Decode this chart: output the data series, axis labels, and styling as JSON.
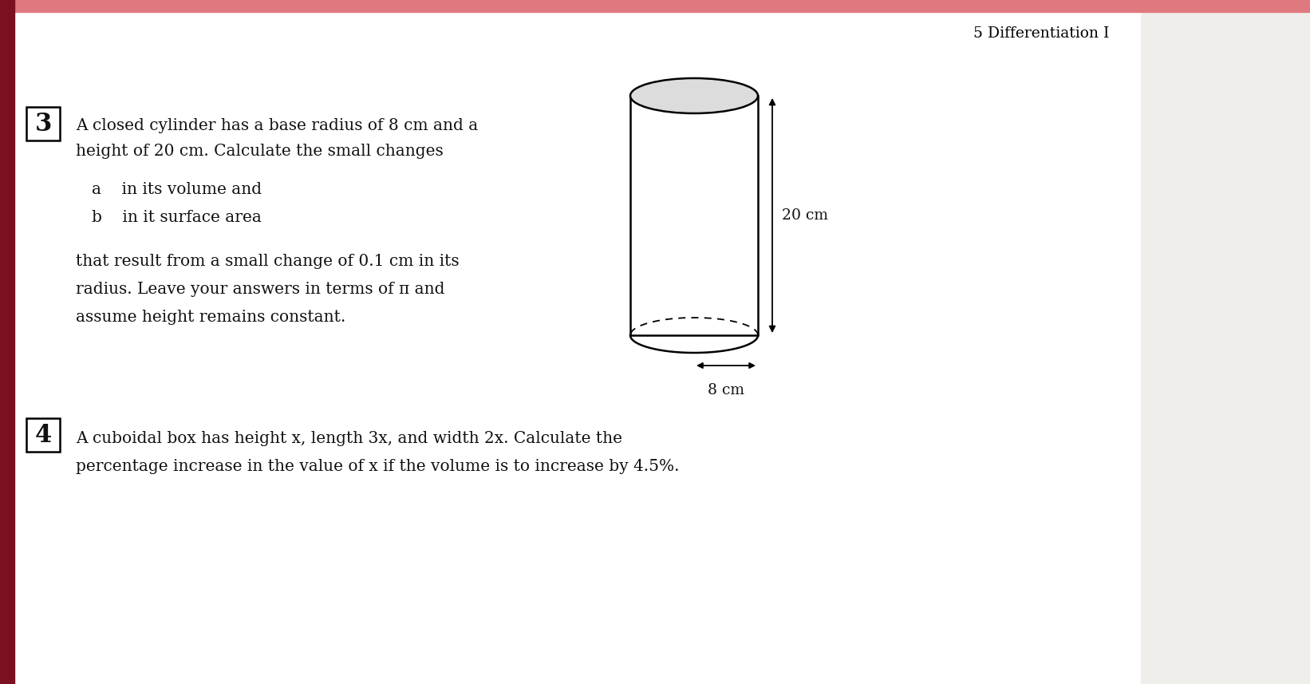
{
  "bg_color": "#f0eeea",
  "white_panel_color": "#ffffff",
  "header_text": "5 Differentiation I",
  "header_fontsize": 14,
  "header_color": "#000000",
  "top_bar_color": "#e07880",
  "left_bar_color": "#7a1020",
  "q3_number": "3",
  "q3_line1": "A closed cylinder has a base radius of 8 cm and a",
  "q3_line2": "height of 20 cm. Calculate the small changes",
  "q3_a": "a    in its volume and",
  "q3_b": "b    in it surface area",
  "q3_line3": "that result from a small change of 0.1 cm in its",
  "q3_line4": "radius. Leave your answers in terms of π and",
  "q3_line5": "assume height remains constant.",
  "q4_number": "4",
  "q4_line1": "A cuboidal box has height x, length 3x, and width 2x. Calculate the",
  "q4_line2": "percentage increase in the value of x if the volume is to increase by 4.5%.",
  "text_fontsize": 14.5,
  "text_color": "#111111",
  "dim_20cm": "20 cm",
  "dim_8cm": "8 cm"
}
